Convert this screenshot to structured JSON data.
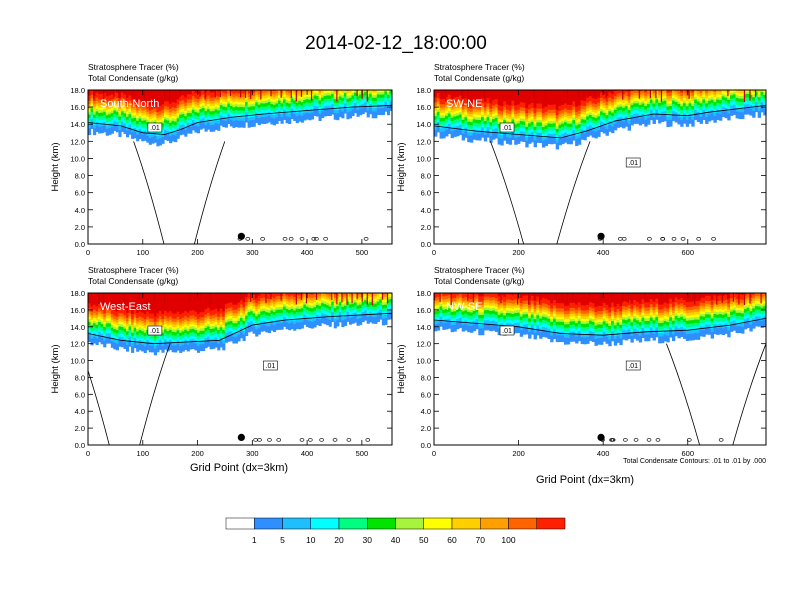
{
  "main_title": "2014-02-12_18:00:00",
  "panel_title_line1": "Stratosphere Tracer   (%)",
  "panel_title_line2": "Total Condensate   (g/kg)",
  "y_axis_label": "Height (km)",
  "x_axis_label": "Grid Point (dx=3km)",
  "contour_note": "Total Condensate Contours: .01 to .01 by .000",
  "colors": {
    "levels": [
      "#ffffff",
      "#2f8fff",
      "#1fbfff",
      "#00ffff",
      "#00ff80",
      "#00e400",
      "#a8f43c",
      "#ffff00",
      "#ffcf00",
      "#ffa000",
      "#ff6400",
      "#ff2000",
      "#e00000"
    ]
  },
  "colorbar": {
    "labels": [
      "1",
      "5",
      "10",
      "20",
      "30",
      "40",
      "50",
      "60",
      "70",
      "100"
    ]
  },
  "chart_data": [
    {
      "type": "heatmap",
      "name": "South-North",
      "title": [
        "Stratosphere Tracer   (%)",
        "Total Condensate   (g/kg)"
      ],
      "xlabel": "",
      "ylabel": "Height (km)",
      "xlim": [
        0,
        555
      ],
      "ylim": [
        0,
        18
      ],
      "xticks": [
        "0",
        "100",
        "200",
        "300",
        "400",
        "500"
      ],
      "yticks": [
        "0.0",
        "2.0",
        "4.0",
        "6.0",
        "8.0",
        "10.0",
        "12.0",
        "14.0",
        "16.0",
        "18.0"
      ],
      "contour_labels": [
        ".01"
      ],
      "marker_x": 280,
      "tropopause_km": [
        [
          0,
          13.6
        ],
        [
          60,
          13.2
        ],
        [
          100,
          12.4
        ],
        [
          140,
          12.2
        ],
        [
          170,
          12.8
        ],
        [
          200,
          13.6
        ],
        [
          260,
          14.2
        ],
        [
          320,
          14.6
        ],
        [
          400,
          15.0
        ],
        [
          480,
          15.4
        ],
        [
          555,
          15.6
        ]
      ]
    },
    {
      "type": "heatmap",
      "name": "SW-NE",
      "title": [
        "Stratosphere Tracer   (%)",
        "Total Condensate   (g/kg)"
      ],
      "xlabel": "",
      "ylabel": "Height (km)",
      "xlim": [
        0,
        785
      ],
      "ylim": [
        0,
        18
      ],
      "xticks": [
        "0",
        "200",
        "400",
        "600"
      ],
      "yticks": [
        "0.0",
        "2.0",
        "4.0",
        "6.0",
        "8.0",
        "10.0",
        "12.0",
        "14.0",
        "16.0",
        "18.0"
      ],
      "contour_labels": [
        ".01",
        ".01"
      ],
      "marker_x": 395,
      "tropopause_km": [
        [
          0,
          13.2
        ],
        [
          100,
          12.6
        ],
        [
          200,
          12.2
        ],
        [
          300,
          11.8
        ],
        [
          360,
          12.6
        ],
        [
          430,
          13.8
        ],
        [
          520,
          14.6
        ],
        [
          600,
          14.4
        ],
        [
          650,
          14.8
        ],
        [
          785,
          15.6
        ]
      ]
    },
    {
      "type": "heatmap",
      "name": "West-East",
      "title": [
        "Stratosphere Tracer   (%)",
        "Total Condensate   (g/kg)"
      ],
      "xlabel": "Grid Point (dx=3km)",
      "ylabel": "Height (km)",
      "xlim": [
        0,
        555
      ],
      "ylim": [
        0,
        18
      ],
      "xticks": [
        "0",
        "100",
        "200",
        "300",
        "400",
        "500"
      ],
      "yticks": [
        "0.0",
        "2.0",
        "4.0",
        "6.0",
        "8.0",
        "10.0",
        "12.0",
        "14.0",
        "16.0",
        "18.0"
      ],
      "contour_labels": [
        ".01",
        ".01"
      ],
      "marker_x": 280,
      "tropopause_km": [
        [
          0,
          12.6
        ],
        [
          60,
          11.8
        ],
        [
          120,
          11.4
        ],
        [
          180,
          11.6
        ],
        [
          240,
          11.8
        ],
        [
          300,
          13.6
        ],
        [
          360,
          14.2
        ],
        [
          440,
          14.6
        ],
        [
          555,
          15.0
        ]
      ]
    },
    {
      "type": "heatmap",
      "name": "NW-SE",
      "title": [
        "Stratosphere Tracer   (%)",
        "Total Condensate   (g/kg)"
      ],
      "xlabel": "Grid Point (dx=3km)",
      "ylabel": "Height (km)",
      "xlim": [
        0,
        785
      ],
      "ylim": [
        0,
        18
      ],
      "xticks": [
        "0",
        "200",
        "400",
        "600"
      ],
      "yticks": [
        "0.0",
        "2.0",
        "4.0",
        "6.0",
        "8.0",
        "10.0",
        "12.0",
        "14.0",
        "16.0",
        "18.0"
      ],
      "contour_labels": [
        ".01",
        ".01"
      ],
      "marker_x": 395,
      "tropopause_km": [
        [
          0,
          14.2
        ],
        [
          100,
          13.8
        ],
        [
          200,
          13.4
        ],
        [
          300,
          12.6
        ],
        [
          400,
          12.4
        ],
        [
          500,
          12.8
        ],
        [
          600,
          13.0
        ],
        [
          700,
          13.6
        ],
        [
          785,
          14.4
        ]
      ]
    }
  ]
}
